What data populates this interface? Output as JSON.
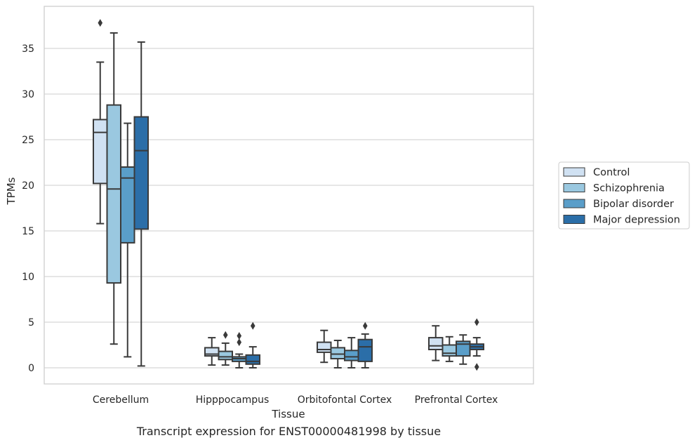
{
  "caption": "Transcript expression for ENST00000481998 by tissue",
  "chart_data": {
    "type": "box",
    "title": "",
    "xlabel": "Tissue",
    "ylabel": "TPMs",
    "ylim": [
      -1.8,
      39.5
    ],
    "yticks": [
      0,
      5,
      10,
      15,
      20,
      25,
      30,
      35
    ],
    "grid": "horizontal",
    "legend_position": "right",
    "categories": [
      "Cerebellum",
      "Hipppocampus",
      "Orbitofontal Cortex",
      "Prefrontal Cortex"
    ],
    "series": [
      {
        "name": "Control",
        "color": "#d0e1f2",
        "boxes": [
          {
            "whislo": 15.8,
            "q1": 20.2,
            "med": 25.8,
            "q3": 27.2,
            "whishi": 33.5,
            "fliers": [
              37.8
            ]
          },
          {
            "whislo": 0.3,
            "q1": 1.3,
            "med": 1.5,
            "q3": 2.2,
            "whishi": 3.3,
            "fliers": []
          },
          {
            "whislo": 0.6,
            "q1": 1.7,
            "med": 2.0,
            "q3": 2.8,
            "whishi": 4.1,
            "fliers": []
          },
          {
            "whislo": 0.8,
            "q1": 2.0,
            "med": 2.4,
            "q3": 3.3,
            "whishi": 4.6,
            "fliers": []
          }
        ]
      },
      {
        "name": "Schizophrenia",
        "color": "#9ac8e0",
        "boxes": [
          {
            "whislo": 2.6,
            "q1": 9.3,
            "med": 19.6,
            "q3": 28.8,
            "whishi": 36.7,
            "fliers": []
          },
          {
            "whislo": 0.3,
            "q1": 0.9,
            "med": 1.2,
            "q3": 1.8,
            "whishi": 2.7,
            "fliers": [
              3.6
            ]
          },
          {
            "whislo": 0.0,
            "q1": 1.0,
            "med": 1.5,
            "q3": 2.2,
            "whishi": 3.0,
            "fliers": []
          },
          {
            "whislo": 0.7,
            "q1": 1.3,
            "med": 1.6,
            "q3": 2.5,
            "whishi": 3.4,
            "fliers": []
          }
        ]
      },
      {
        "name": "Bipolar disorder",
        "color": "#5a9ec9",
        "boxes": [
          {
            "whislo": 1.2,
            "q1": 13.7,
            "med": 20.8,
            "q3": 22.0,
            "whishi": 26.8,
            "fliers": []
          },
          {
            "whislo": 0.0,
            "q1": 0.7,
            "med": 1.0,
            "q3": 1.2,
            "whishi": 1.5,
            "fliers": [
              2.8,
              3.5
            ]
          },
          {
            "whislo": 0.0,
            "q1": 0.8,
            "med": 1.2,
            "q3": 1.9,
            "whishi": 3.3,
            "fliers": []
          },
          {
            "whislo": 0.4,
            "q1": 1.3,
            "med": 2.6,
            "q3": 2.9,
            "whishi": 3.6,
            "fliers": []
          }
        ]
      },
      {
        "name": "Major depression",
        "color": "#2b6ea8",
        "boxes": [
          {
            "whislo": 0.2,
            "q1": 15.2,
            "med": 23.8,
            "q3": 27.5,
            "whishi": 35.7,
            "fliers": []
          },
          {
            "whislo": 0.0,
            "q1": 0.4,
            "med": 0.7,
            "q3": 1.4,
            "whishi": 2.3,
            "fliers": [
              4.6
            ]
          },
          {
            "whislo": 0.0,
            "q1": 0.7,
            "med": 2.3,
            "q3": 3.1,
            "whishi": 3.7,
            "fliers": [
              4.6
            ]
          },
          {
            "whislo": 1.3,
            "q1": 2.0,
            "med": 2.3,
            "q3": 2.6,
            "whishi": 3.3,
            "fliers": [
              5.0,
              0.1
            ]
          }
        ]
      }
    ]
  }
}
